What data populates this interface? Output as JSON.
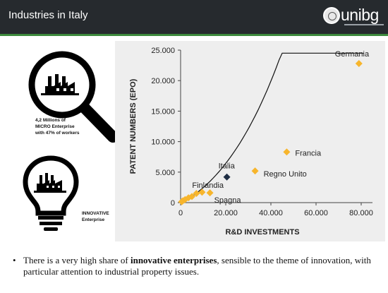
{
  "header": {
    "title": "Industries in Italy",
    "logo_text": "unibg"
  },
  "colors": {
    "header_bg": "#262a2e",
    "accent": "#3d8a3d",
    "point": "#f7b52c",
    "highlight": "#1f2e44",
    "chart_bg": "#eeeeee"
  },
  "icons": {
    "magnifier": {
      "icon": "magnifier-factory-icon",
      "caption": [
        "4,2 Millions of",
        "MICRO Enterprise",
        "with 47% of workers"
      ]
    },
    "bulb": {
      "icon": "lightbulb-factory-icon",
      "caption": [
        "INNOVATIVE",
        "Enterprise"
      ]
    }
  },
  "bullet": {
    "text_before": "There is a very high share of ",
    "bold": "innovative enterprises",
    "text_after": ", sensible to the theme of innovation, with particular attention to industrial property issues."
  },
  "chart_data": {
    "type": "scatter",
    "xlabel": "R&D INVESTMENTS",
    "ylabel": "PATENT NUMBERS (EPO)",
    "xlim": [
      0,
      85000
    ],
    "ylim": [
      0,
      25000
    ],
    "xticks": [
      0,
      20000,
      40000,
      60000,
      80000
    ],
    "xtick_labels": [
      "0",
      "20.000",
      "40.000",
      "60.000",
      "80.000"
    ],
    "yticks": [
      0,
      5000,
      10000,
      15000,
      20000,
      25000
    ],
    "ytick_labels": [
      "0",
      "5.000",
      "10.000",
      "15.000",
      "20.000",
      "25.000"
    ],
    "trendline": true,
    "points": [
      {
        "x": 79000,
        "y": 22800,
        "label": "Germania",
        "highlight": false
      },
      {
        "x": 47000,
        "y": 8300,
        "label": "Francia",
        "highlight": false
      },
      {
        "x": 33000,
        "y": 5200,
        "label": "Regno Unito",
        "highlight": false
      },
      {
        "x": 20500,
        "y": 4200,
        "label": "Italia",
        "highlight": true
      },
      {
        "x": 13000,
        "y": 1600,
        "label": "Spagna",
        "highlight": false
      },
      {
        "x": 7000,
        "y": 1500,
        "label": "Finlandia",
        "highlight": false
      },
      {
        "x": 9500,
        "y": 1700,
        "label": "",
        "highlight": false
      },
      {
        "x": 5000,
        "y": 1000,
        "label": "",
        "highlight": false
      },
      {
        "x": 3500,
        "y": 800,
        "label": "",
        "highlight": false
      },
      {
        "x": 2000,
        "y": 500,
        "label": "",
        "highlight": false
      },
      {
        "x": 1000,
        "y": 300,
        "label": "",
        "highlight": false
      },
      {
        "x": 500,
        "y": 150,
        "label": "",
        "highlight": false
      }
    ]
  }
}
